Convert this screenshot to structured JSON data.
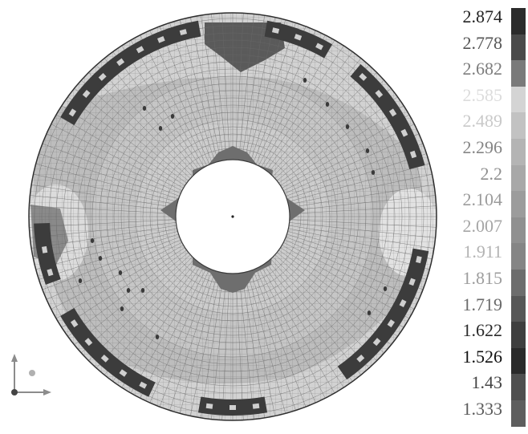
{
  "viewer": {
    "model": "annular-disc-mesh",
    "background": "#ffffff",
    "mesh_edge_color": "#5a5a5a"
  },
  "legend": {
    "values": [
      "2.874",
      "2.778",
      "2.682",
      "2.585",
      "2.489",
      "2.296",
      "2.2",
      "2.104",
      "2.007",
      "1.911",
      "1.815",
      "1.719",
      "1.622",
      "1.526",
      "1.43",
      "1.333"
    ],
    "label_colors": [
      "#222222",
      "#555555",
      "#7d7d7d",
      "#dcdcdc",
      "#c9c9c9",
      "#858585",
      "#8f8f8f",
      "#9b9b9b",
      "#a6a6a6",
      "#b3b3b3",
      "#9d9d9d",
      "#6a6a6a",
      "#2a2a2a",
      "#111111",
      "#444444",
      "#5a5a5a"
    ],
    "swatch_colors": [
      "#2b2b2b",
      "#4a4a4a",
      "#7a7a7a",
      "#d4d4d4",
      "#c2c2c2",
      "#b4b4b4",
      "#a8a8a8",
      "#9c9c9c",
      "#909090",
      "#858585",
      "#6d6d6d",
      "#575757",
      "#3f3f3f",
      "#2a2a2a",
      "#4f4f4f",
      "#5e5e5e"
    ]
  },
  "axis_triad": {
    "icon": "xyz-axis-triad-icon",
    "color": "#8c8c8c"
  }
}
